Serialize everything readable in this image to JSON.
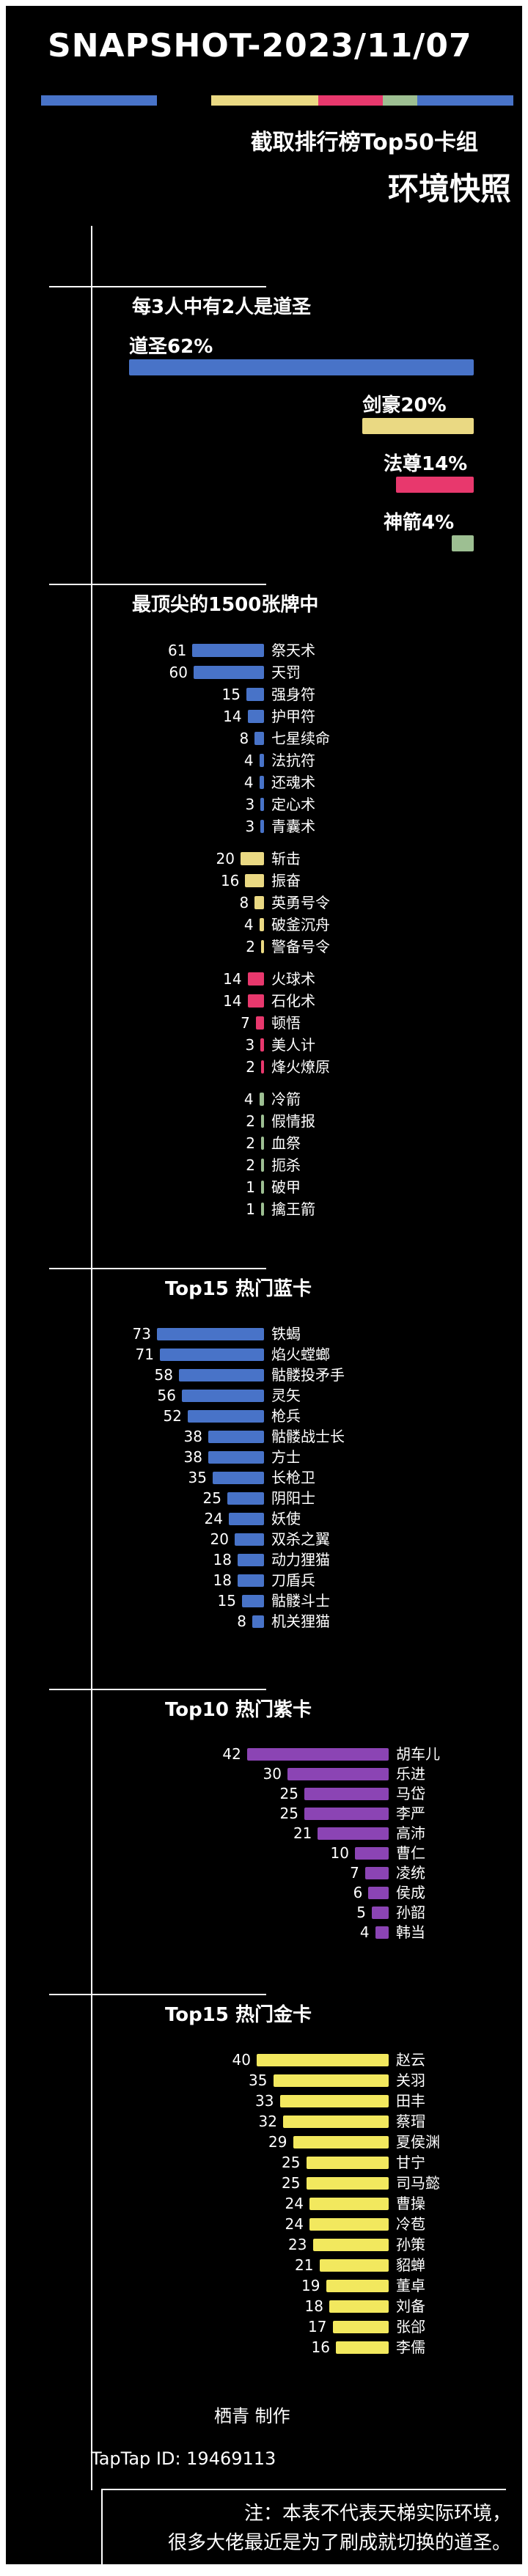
{
  "header": {
    "title": "SNAPSHOT-2023/11/07",
    "subtitle": "截取排行榜Top50卡组",
    "snapshot_label": "环境快照",
    "stripe": [
      {
        "color": "blue",
        "width": 158
      },
      {
        "color": "gap",
        "width": 74
      },
      {
        "color": "yellow",
        "width": 146
      },
      {
        "color": "pink",
        "width": 88
      },
      {
        "color": "green",
        "width": 47
      },
      {
        "color": "blue",
        "width": 131
      }
    ]
  },
  "colors": {
    "blue": "#4873c8",
    "yellow": "#ead983",
    "pink": "#e8386d",
    "green": "#9dbf92",
    "purple": "#8b44b4",
    "gold": "#f2e85e",
    "text": "#ffffff",
    "background": "#000000"
  },
  "chart_data": [
    {
      "type": "bar",
      "title": "每3人中有2人是道圣",
      "orientation": "horizontal",
      "align": "right",
      "unit": "%",
      "items": [
        {
          "label": "道圣62%",
          "name": "道圣",
          "value": 62,
          "color": "blue"
        },
        {
          "label": "剑豪20%",
          "name": "剑豪",
          "value": 20,
          "color": "yellow"
        },
        {
          "label": "法尊14%",
          "name": "法尊",
          "value": 14,
          "color": "pink"
        },
        {
          "label": "神箭4%",
          "name": "神箭",
          "value": 4,
          "color": "green"
        }
      ]
    },
    {
      "type": "bar",
      "title": "最顶尖的1500张牌中",
      "orientation": "horizontal",
      "align": "right",
      "groups": [
        {
          "color": "blue",
          "items": [
            {
              "name": "祭天术",
              "value": 61
            },
            {
              "name": "天罚",
              "value": 60
            },
            {
              "name": "强身符",
              "value": 15
            },
            {
              "name": "护甲符",
              "value": 14
            },
            {
              "name": "七星续命",
              "value": 8
            },
            {
              "name": "法抗符",
              "value": 4
            },
            {
              "name": "还魂术",
              "value": 4
            },
            {
              "name": "定心术",
              "value": 3
            },
            {
              "name": "青囊术",
              "value": 3
            }
          ]
        },
        {
          "color": "yellow",
          "items": [
            {
              "name": "斩击",
              "value": 20
            },
            {
              "name": "振奋",
              "value": 16
            },
            {
              "name": "英勇号令",
              "value": 8
            },
            {
              "name": "破釜沉舟",
              "value": 4
            },
            {
              "name": "警备号令",
              "value": 2
            }
          ]
        },
        {
          "color": "pink",
          "items": [
            {
              "name": "火球术",
              "value": 14
            },
            {
              "name": "石化术",
              "value": 14
            },
            {
              "name": "顿悟",
              "value": 7
            },
            {
              "name": "美人计",
              "value": 3
            },
            {
              "name": "烽火燎原",
              "value": 2
            }
          ]
        },
        {
          "color": "green",
          "items": [
            {
              "name": "冷箭",
              "value": 4
            },
            {
              "name": "假情报",
              "value": 2
            },
            {
              "name": "血祭",
              "value": 2
            },
            {
              "name": "扼杀",
              "value": 2
            },
            {
              "name": "破甲",
              "value": 1
            },
            {
              "name": "擒王箭",
              "value": 1
            }
          ]
        }
      ]
    },
    {
      "type": "bar",
      "title": "Top15 热门蓝卡",
      "orientation": "horizontal",
      "align": "right",
      "color": "blue",
      "items": [
        {
          "name": "铁蝎",
          "value": 73
        },
        {
          "name": "焰火螳螂",
          "value": 71
        },
        {
          "name": "骷髅投矛手",
          "value": 58
        },
        {
          "name": "灵矢",
          "value": 56
        },
        {
          "name": "枪兵",
          "value": 52
        },
        {
          "name": "骷髅战士长",
          "value": 38
        },
        {
          "name": "方士",
          "value": 38
        },
        {
          "name": "长枪卫",
          "value": 35
        },
        {
          "name": "阴阳士",
          "value": 25
        },
        {
          "name": "妖使",
          "value": 24
        },
        {
          "name": "双杀之翼",
          "value": 20
        },
        {
          "name": "动力狸猫",
          "value": 18
        },
        {
          "name": "刀盾兵",
          "value": 18
        },
        {
          "name": "骷髅斗士",
          "value": 15
        },
        {
          "name": "机关狸猫",
          "value": 8
        }
      ]
    },
    {
      "type": "bar",
      "title": "Top10 热门紫卡",
      "orientation": "horizontal",
      "align": "right",
      "color": "purple",
      "items": [
        {
          "name": "胡车儿",
          "value": 42
        },
        {
          "name": "乐进",
          "value": 30
        },
        {
          "name": "马岱",
          "value": 25
        },
        {
          "name": "李严",
          "value": 25
        },
        {
          "name": "高沛",
          "value": 21
        },
        {
          "name": "曹仁",
          "value": 10
        },
        {
          "name": "凌统",
          "value": 7
        },
        {
          "name": "侯成",
          "value": 6
        },
        {
          "name": "孙韶",
          "value": 5
        },
        {
          "name": "韩当",
          "value": 4
        }
      ]
    },
    {
      "type": "bar",
      "title": "Top15 热门金卡",
      "orientation": "horizontal",
      "align": "right",
      "color": "gold",
      "items": [
        {
          "name": "赵云",
          "value": 40
        },
        {
          "name": "关羽",
          "value": 35
        },
        {
          "name": "田丰",
          "value": 33
        },
        {
          "name": "蔡瑁",
          "value": 32
        },
        {
          "name": "夏侯渊",
          "value": 29
        },
        {
          "name": "甘宁",
          "value": 25
        },
        {
          "name": "司马懿",
          "value": 25
        },
        {
          "name": "曹操",
          "value": 24
        },
        {
          "name": "冷苞",
          "value": 24
        },
        {
          "name": "孙策",
          "value": 23
        },
        {
          "name": "貂蝉",
          "value": 21
        },
        {
          "name": "董卓",
          "value": 19
        },
        {
          "name": "刘备",
          "value": 18
        },
        {
          "name": "张郃",
          "value": 17
        },
        {
          "name": "李儒",
          "value": 16
        }
      ]
    }
  ],
  "footer": {
    "credit": "栖青 制作",
    "taptap_id": "TapTap ID: 19469113"
  },
  "note": {
    "line1": "注：本表不代表天梯实际环境，",
    "line2": "很多大佬最近是为了刷成就切换的道圣。"
  }
}
